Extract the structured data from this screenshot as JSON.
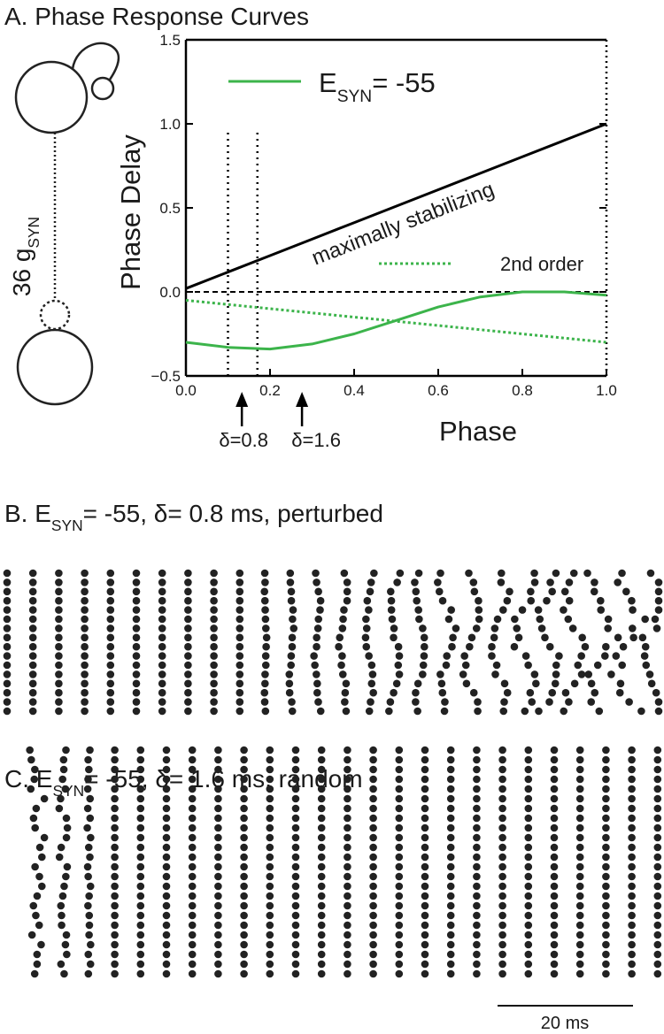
{
  "chart_data": {
    "type": "line",
    "title": "A. Phase Response Curves",
    "xlabel": "Phase",
    "ylabel": "Phase Delay",
    "xlim": [
      0,
      1
    ],
    "ylim": [
      -0.5,
      1.5
    ],
    "xticks": [
      {
        "value": 0,
        "label": "0.0"
      },
      {
        "value": 0.2,
        "label": "0.2"
      },
      {
        "value": 0.4,
        "label": "0.4"
      },
      {
        "value": 0.6,
        "label": "0.6"
      },
      {
        "value": 0.8,
        "label": "0.8"
      },
      {
        "value": 1,
        "label": "1.0"
      }
    ],
    "yticks": [
      {
        "value": -0.5,
        "label": "−0.5"
      },
      {
        "value": 0,
        "label": "0.0"
      },
      {
        "value": 0.5,
        "label": "0.5"
      },
      {
        "value": 1,
        "label": "1.0"
      },
      {
        "value": 1.5,
        "label": "1.5"
      }
    ],
    "x": [
      0,
      0.1,
      0.2,
      0.3,
      0.4,
      0.5,
      0.6,
      0.7,
      0.8,
      0.9,
      1
    ],
    "series": [
      {
        "name": "ESYN= -55",
        "color": "#3cb44b",
        "style": "solid",
        "values": [
          -0.3,
          -0.33,
          -0.34,
          -0.31,
          -0.25,
          -0.17,
          -0.09,
          -0.03,
          0.0,
          0.0,
          -0.02
        ]
      },
      {
        "name": "2nd order",
        "color": "#3cb44b",
        "style": "dotted",
        "values": [
          -0.05,
          -0.075,
          -0.1,
          -0.125,
          -0.15,
          -0.175,
          -0.2,
          -0.225,
          -0.25,
          -0.275,
          -0.3
        ]
      },
      {
        "name": "maximally stabilizing",
        "color": "#000000",
        "style": "solid",
        "values": [
          0.02,
          0.118,
          0.216,
          0.314,
          0.412,
          0.51,
          0.608,
          0.706,
          0.804,
          0.902,
          1.0
        ]
      }
    ],
    "vlines": [
      0.1,
      0.17
    ],
    "annotations": [
      {
        "text": "δ=0.8",
        "x": 0.133
      },
      {
        "text": "δ=1.6",
        "x": 0.276
      }
    ],
    "diagram_label": "36 gSYN",
    "panel_b_title": "B. ESYN= -55, δ= 0.8 ms, perturbed",
    "panel_c_title": "C. ESYN= -55, δ= 1.6 ms, random",
    "scale_bar": "20 ms"
  }
}
